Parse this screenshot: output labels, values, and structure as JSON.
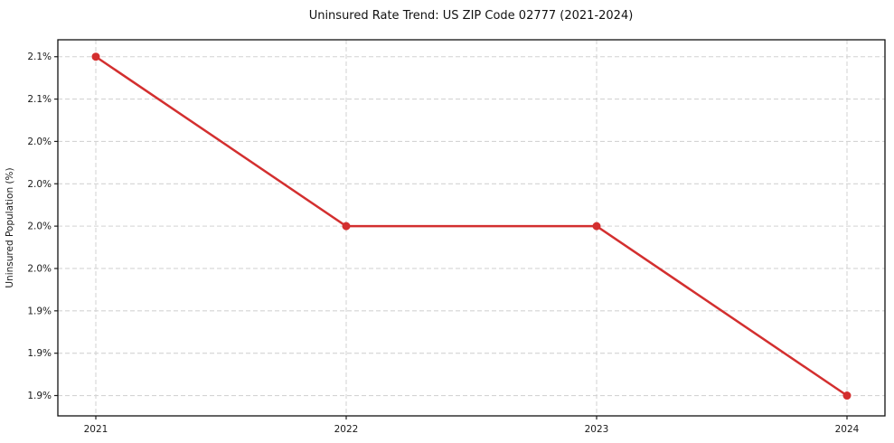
{
  "chart_data": {
    "type": "line",
    "title": "Uninsured Rate Trend: US ZIP Code 02777 (2021-2024)",
    "xlabel": "",
    "ylabel": "Uninsured Population (%)",
    "x": [
      2021,
      2022,
      2023,
      2024
    ],
    "xtick_labels": [
      "2021",
      "2022",
      "2023",
      "2024"
    ],
    "series": [
      {
        "name": "Uninsured Rate",
        "values": [
          2.1,
          2.0,
          2.0,
          1.9
        ],
        "color": "#d32f2f",
        "marker": "circle"
      }
    ],
    "ylim": [
      1.888,
      2.11
    ],
    "yticks": [
      1.9,
      1.925,
      1.95,
      1.975,
      2.0,
      2.025,
      2.05,
      2.075,
      2.1
    ],
    "ytick_labels": [
      "1.9%",
      "1.9%",
      "1.9%",
      "2.0%",
      "2.0%",
      "2.0%",
      "2.0%",
      "2.1%",
      "2.1%"
    ],
    "grid": true,
    "legend_position": "none",
    "colors": {
      "line": "#d32f2f",
      "grid": "#d4d4d4",
      "spine": "#111111",
      "text": "#1a1a1a",
      "background": "#ffffff"
    }
  }
}
